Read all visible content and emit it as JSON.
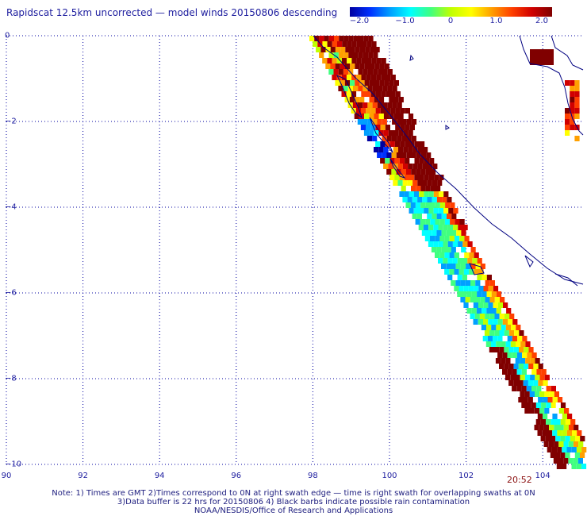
{
  "title": "Rapidscat 12.5km uncorrected — model winds 20150806 descending",
  "colorbar": {
    "ticks": [
      "−2.0",
      "−1.0",
      "0",
      "1.0",
      "2.0"
    ],
    "tick_values": [
      -2.0,
      -1.0,
      0,
      1.0,
      2.0
    ],
    "colors": [
      "#0000a0",
      "#0030ff",
      "#00a0ff",
      "#00ffff",
      "#40ff80",
      "#c0ff00",
      "#ffff00",
      "#ffa000",
      "#ff4000",
      "#d00000",
      "#800000"
    ]
  },
  "x_axis": {
    "ticks": [
      "90",
      "92",
      "94",
      "96",
      "98",
      "100",
      "102",
      "104"
    ],
    "values": [
      90,
      92,
      94,
      96,
      98,
      100,
      102,
      104
    ],
    "range": [
      90,
      105
    ]
  },
  "y_axis": {
    "ticks": [
      "0",
      "−2",
      "−4",
      "−6",
      "−8",
      "−10"
    ],
    "values": [
      0,
      -2,
      -4,
      -6,
      -8,
      -10
    ],
    "range": [
      -10,
      0
    ]
  },
  "time_label": "20:52",
  "notes": {
    "line1": "Note: 1) Times are GMT 2)Times correspond to 0N at right swath edge — time is right swath for overlapping swaths at 0N",
    "line2": "3)Data buffer is 22 hrs for 20150806 4) Black barbs indicate possible rain contamination",
    "line3": "NOAA/NESDIS/Office of Research and Applications"
  },
  "swath_data": {
    "description_units": "wind speed difference (m/s), lon/lat degrees",
    "cell_size_deg": 0.25
  },
  "colors": {
    "coastline": "#000080",
    "grid": "#0000a0",
    "land_white": "#ffffff"
  }
}
